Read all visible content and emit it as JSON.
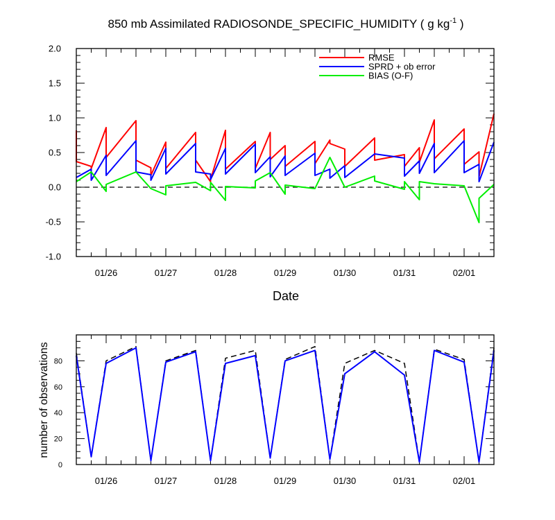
{
  "chart_data": [
    {
      "type": "line",
      "title": "850 mb Assimilated RADIOSONDE_SPECIFIC_HUMIDITY ( g kg",
      "title_superscript": "-1",
      "title_suffix": " )",
      "xlabel": "Date",
      "ylabel": "",
      "ylim": [
        -1.0,
        2.0
      ],
      "yticks": [
        "-1.0",
        "-0.5",
        "0.0",
        "0.5",
        "1.0",
        "1.5",
        "2.0"
      ],
      "xlim": [
        "01/25 12Z",
        "02/01 12Z"
      ],
      "xtick_labels": [
        "01/26",
        "01/27",
        "01/28",
        "01/29",
        "01/30",
        "01/31",
        "02/01"
      ],
      "zero_line": "dashed",
      "legend_position": "top-right",
      "series": [
        {
          "name": "RMSE",
          "color": "#ff0000",
          "points": [
            [
              0.0,
              0.82
            ],
            [
              0.0,
              0.37
            ],
            [
              0.25,
              0.3
            ],
            [
              0.25,
              0.27
            ],
            [
              0.5,
              0.86
            ],
            [
              0.5,
              0.43
            ],
            [
              1.0,
              0.96
            ],
            [
              1.0,
              0.39
            ],
            [
              1.25,
              0.28
            ],
            [
              1.25,
              0.17
            ],
            [
              1.5,
              0.65
            ],
            [
              1.5,
              0.27
            ],
            [
              2.0,
              0.79
            ],
            [
              2.0,
              0.39
            ],
            [
              2.25,
              0.08
            ],
            [
              2.25,
              0.11
            ],
            [
              2.5,
              0.82
            ],
            [
              2.5,
              0.26
            ],
            [
              3.0,
              0.66
            ],
            [
              3.0,
              0.27
            ],
            [
              3.25,
              0.79
            ],
            [
              3.25,
              0.4
            ],
            [
              3.5,
              0.6
            ],
            [
              3.5,
              0.3
            ],
            [
              4.0,
              0.66
            ],
            [
              4.0,
              0.34
            ],
            [
              4.25,
              0.68
            ],
            [
              4.25,
              0.63
            ],
            [
              4.5,
              0.55
            ],
            [
              4.5,
              0.3
            ],
            [
              5.0,
              0.71
            ],
            [
              5.0,
              0.39
            ],
            [
              5.5,
              0.47
            ],
            [
              5.5,
              0.3
            ],
            [
              5.75,
              0.57
            ],
            [
              5.75,
              0.36
            ],
            [
              6.0,
              0.97
            ],
            [
              6.0,
              0.41
            ],
            [
              6.5,
              0.84
            ],
            [
              6.5,
              0.33
            ],
            [
              6.75,
              0.51
            ],
            [
              6.75,
              0.15
            ],
            [
              7.0,
              1.06
            ]
          ]
        },
        {
          "name": "SPRD + ob error",
          "color": "#0000ff",
          "points": [
            [
              0.0,
              0.14
            ],
            [
              0.25,
              0.26
            ],
            [
              0.25,
              0.1
            ],
            [
              0.5,
              0.46
            ],
            [
              0.5,
              0.17
            ],
            [
              1.0,
              0.67
            ],
            [
              1.0,
              0.22
            ],
            [
              1.25,
              0.18
            ],
            [
              1.25,
              0.1
            ],
            [
              1.5,
              0.56
            ],
            [
              1.5,
              0.19
            ],
            [
              2.0,
              0.63
            ],
            [
              2.0,
              0.22
            ],
            [
              2.25,
              0.19
            ],
            [
              2.25,
              0.11
            ],
            [
              2.5,
              0.56
            ],
            [
              2.5,
              0.19
            ],
            [
              3.0,
              0.62
            ],
            [
              3.0,
              0.21
            ],
            [
              3.25,
              0.44
            ],
            [
              3.25,
              0.15
            ],
            [
              3.5,
              0.45
            ],
            [
              3.5,
              0.17
            ],
            [
              4.0,
              0.49
            ],
            [
              4.0,
              0.17
            ],
            [
              4.25,
              0.26
            ],
            [
              4.25,
              0.13
            ],
            [
              4.5,
              0.31
            ],
            [
              4.5,
              0.14
            ],
            [
              5.0,
              0.48
            ],
            [
              5.5,
              0.42
            ],
            [
              5.5,
              0.16
            ],
            [
              5.75,
              0.38
            ],
            [
              5.75,
              0.2
            ],
            [
              6.0,
              0.63
            ],
            [
              6.0,
              0.21
            ],
            [
              6.5,
              0.67
            ],
            [
              6.5,
              0.21
            ],
            [
              6.75,
              0.33
            ],
            [
              6.75,
              0.08
            ],
            [
              7.0,
              0.65
            ]
          ]
        },
        {
          "name": "BIAS (O-F)",
          "color": "#00ee00",
          "points": [
            [
              0.0,
              0.08
            ],
            [
              0.25,
              0.22
            ],
            [
              0.5,
              -0.06
            ],
            [
              0.5,
              0.04
            ],
            [
              1.0,
              0.22
            ],
            [
              1.25,
              -0.02
            ],
            [
              1.5,
              -0.11
            ],
            [
              1.5,
              0.02
            ],
            [
              2.0,
              0.07
            ],
            [
              2.25,
              -0.05
            ],
            [
              2.25,
              0.07
            ],
            [
              2.5,
              -0.19
            ],
            [
              2.5,
              0.01
            ],
            [
              3.0,
              -0.01
            ],
            [
              3.0,
              0.09
            ],
            [
              3.25,
              0.21
            ],
            [
              3.5,
              -0.1
            ],
            [
              3.5,
              0.03
            ],
            [
              4.0,
              -0.02
            ],
            [
              4.25,
              0.43
            ],
            [
              4.5,
              0.0
            ],
            [
              5.0,
              0.16
            ],
            [
              5.0,
              0.09
            ],
            [
              5.5,
              -0.03
            ],
            [
              5.5,
              0.08
            ],
            [
              5.75,
              -0.18
            ],
            [
              5.75,
              0.08
            ],
            [
              6.0,
              0.05
            ],
            [
              6.5,
              0.02
            ],
            [
              6.75,
              -0.51
            ],
            [
              6.75,
              -0.16
            ],
            [
              7.0,
              0.04
            ]
          ]
        }
      ]
    },
    {
      "type": "line",
      "title": "",
      "xlabel": "",
      "ylabel": "number of observations",
      "ylim": [
        0,
        100
      ],
      "yticks": [
        "0",
        "20",
        "40",
        "60",
        "80"
      ],
      "xlim": [
        "01/25 12Z",
        "02/01 12Z"
      ],
      "xtick_labels": [
        "01/26",
        "01/27",
        "01/28",
        "01/29",
        "01/30",
        "01/31",
        "02/01"
      ],
      "series": [
        {
          "color": "#000000",
          "style": "dashed",
          "points": [
            [
              0.0,
              86
            ],
            [
              0.25,
              6
            ],
            [
              0.5,
              80
            ],
            [
              1.0,
              91
            ],
            [
              1.25,
              3
            ],
            [
              1.5,
              80
            ],
            [
              2.0,
              88
            ],
            [
              2.25,
              3
            ],
            [
              2.5,
              82
            ],
            [
              3.0,
              88
            ],
            [
              3.25,
              5
            ],
            [
              3.5,
              81
            ],
            [
              4.0,
              91
            ],
            [
              4.25,
              4
            ],
            [
              4.5,
              78
            ],
            [
              5.0,
              88
            ],
            [
              5.5,
              78
            ],
            [
              5.75,
              2
            ],
            [
              6.0,
              89
            ],
            [
              6.5,
              81
            ],
            [
              6.75,
              2
            ],
            [
              7.0,
              90
            ]
          ]
        },
        {
          "color": "#0000ff",
          "style": "solid",
          "points": [
            [
              0.0,
              84
            ],
            [
              0.25,
              6
            ],
            [
              0.5,
              78
            ],
            [
              1.0,
              90
            ],
            [
              1.25,
              3
            ],
            [
              1.5,
              79
            ],
            [
              2.0,
              87
            ],
            [
              2.25,
              3
            ],
            [
              2.5,
              78
            ],
            [
              3.0,
              84
            ],
            [
              3.25,
              5
            ],
            [
              3.5,
              80
            ],
            [
              4.0,
              88
            ],
            [
              4.25,
              4
            ],
            [
              4.5,
              70
            ],
            [
              5.0,
              87
            ],
            [
              5.5,
              69
            ],
            [
              5.75,
              2
            ],
            [
              6.0,
              88
            ],
            [
              6.5,
              79
            ],
            [
              6.75,
              2
            ],
            [
              7.0,
              88
            ]
          ]
        }
      ]
    }
  ]
}
